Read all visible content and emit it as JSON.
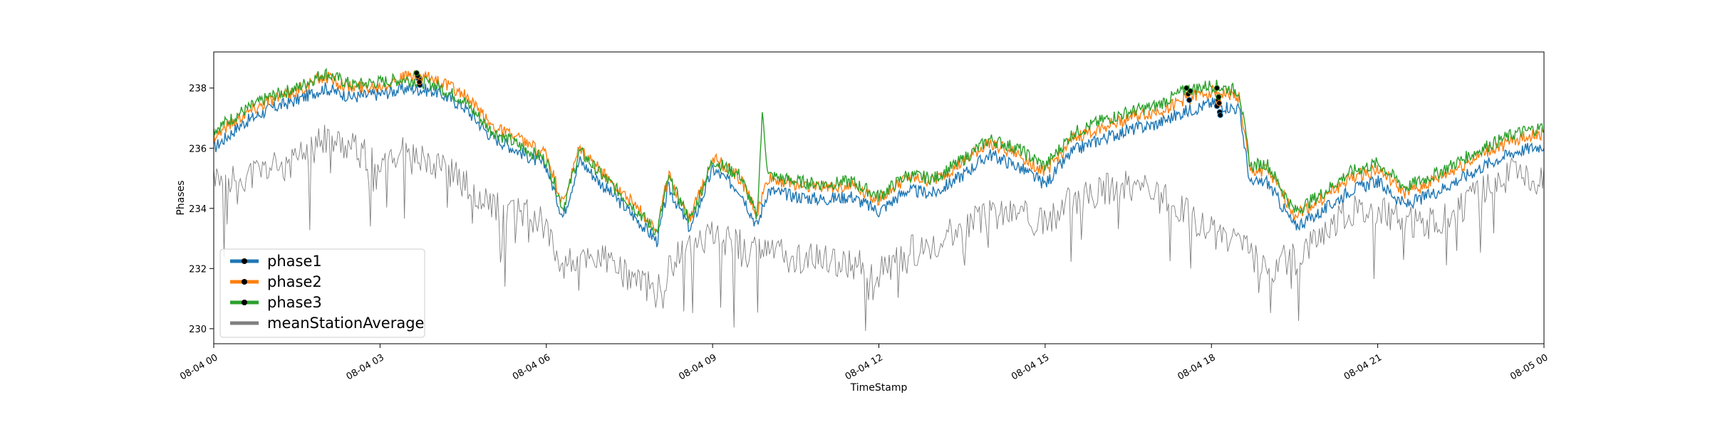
{
  "chart_data": {
    "type": "line",
    "title": "",
    "xlabel": "TimeStamp",
    "ylabel": "Phases",
    "x_ticks": [
      "08-04 00",
      "08-04 03",
      "08-04 06",
      "08-04 09",
      "08-04 12",
      "08-04 15",
      "08-04 18",
      "08-04 21",
      "08-05 00"
    ],
    "xlim_hours": [
      0,
      24
    ],
    "y_ticks": [
      "230",
      "232",
      "234",
      "236",
      "238"
    ],
    "ylim": [
      229.5,
      239.2
    ],
    "grid": false,
    "legend_position": "lower-left",
    "series": [
      {
        "name": "phase1",
        "color": "#1f77b4",
        "marker": "black dot",
        "points": [
          [
            0,
            236.0
          ],
          [
            0.5,
            236.8
          ],
          [
            1,
            237.3
          ],
          [
            1.5,
            237.6
          ],
          [
            2,
            238.0
          ],
          [
            2.5,
            237.7
          ],
          [
            3,
            237.8
          ],
          [
            3.5,
            238.0
          ],
          [
            4,
            237.9
          ],
          [
            4.5,
            237.4
          ],
          [
            5,
            236.4
          ],
          [
            5.5,
            235.9
          ],
          [
            6,
            235.4
          ],
          [
            6.3,
            233.7
          ],
          [
            6.6,
            235.6
          ],
          [
            7,
            234.8
          ],
          [
            7.5,
            233.9
          ],
          [
            8,
            232.9
          ],
          [
            8.2,
            234.7
          ],
          [
            8.6,
            233.3
          ],
          [
            9,
            235.3
          ],
          [
            9.5,
            234.6
          ],
          [
            9.8,
            233.4
          ],
          [
            10,
            234.6
          ],
          [
            10.5,
            234.4
          ],
          [
            11,
            234.3
          ],
          [
            11.5,
            234.4
          ],
          [
            12,
            233.9
          ],
          [
            12.5,
            234.6
          ],
          [
            13,
            234.5
          ],
          [
            13.5,
            235.1
          ],
          [
            14,
            235.8
          ],
          [
            14.5,
            235.4
          ],
          [
            15,
            234.8
          ],
          [
            15.5,
            235.9
          ],
          [
            16,
            236.3
          ],
          [
            16.5,
            236.6
          ],
          [
            17,
            236.8
          ],
          [
            17.5,
            237.2
          ],
          [
            18,
            237.5
          ],
          [
            18.5,
            237.3
          ],
          [
            18.7,
            234.8
          ],
          [
            19,
            234.9
          ],
          [
            19.5,
            233.4
          ],
          [
            20,
            233.9
          ],
          [
            20.5,
            234.6
          ],
          [
            21,
            234.9
          ],
          [
            21.5,
            234.1
          ],
          [
            22,
            234.5
          ],
          [
            22.5,
            235.0
          ],
          [
            23,
            235.5
          ],
          [
            23.5,
            235.9
          ],
          [
            24,
            236.1
          ]
        ],
        "markers": [
          [
            3.7,
            238.3
          ],
          [
            3.72,
            238.1
          ],
          [
            17.6,
            237.6
          ],
          [
            18.1,
            237.4
          ],
          [
            18.15,
            237.2
          ],
          [
            18.16,
            237.1
          ]
        ]
      },
      {
        "name": "phase2",
        "color": "#ff7f0e",
        "marker": "black dot",
        "points": [
          [
            0,
            236.4
          ],
          [
            0.5,
            237.1
          ],
          [
            1,
            237.6
          ],
          [
            1.5,
            237.9
          ],
          [
            2,
            238.4
          ],
          [
            2.5,
            238.0
          ],
          [
            3,
            238.1
          ],
          [
            3.5,
            238.4
          ],
          [
            4,
            238.3
          ],
          [
            4.5,
            237.8
          ],
          [
            5,
            236.8
          ],
          [
            5.5,
            236.3
          ],
          [
            6,
            235.8
          ],
          [
            6.3,
            234.1
          ],
          [
            6.6,
            236.0
          ],
          [
            7,
            235.2
          ],
          [
            7.5,
            234.3
          ],
          [
            8,
            233.3
          ],
          [
            8.2,
            235.1
          ],
          [
            8.6,
            233.7
          ],
          [
            9,
            235.7
          ],
          [
            9.5,
            235.0
          ],
          [
            9.8,
            233.8
          ],
          [
            10,
            235.0
          ],
          [
            10.5,
            234.8
          ],
          [
            11,
            234.7
          ],
          [
            11.5,
            234.8
          ],
          [
            12,
            234.3
          ],
          [
            12.5,
            235.0
          ],
          [
            13,
            234.9
          ],
          [
            13.5,
            235.5
          ],
          [
            14,
            236.2
          ],
          [
            14.5,
            235.8
          ],
          [
            15,
            235.2
          ],
          [
            15.5,
            236.3
          ],
          [
            16,
            236.7
          ],
          [
            16.5,
            237.0
          ],
          [
            17,
            237.2
          ],
          [
            17.5,
            237.6
          ],
          [
            18,
            237.9
          ],
          [
            18.5,
            237.7
          ],
          [
            18.7,
            235.2
          ],
          [
            19,
            235.3
          ],
          [
            19.5,
            233.8
          ],
          [
            20,
            234.3
          ],
          [
            20.5,
            235.0
          ],
          [
            21,
            235.3
          ],
          [
            21.5,
            234.5
          ],
          [
            22,
            234.9
          ],
          [
            22.5,
            235.4
          ],
          [
            23,
            235.9
          ],
          [
            23.5,
            236.3
          ],
          [
            24,
            236.5
          ]
        ],
        "markers": [
          [
            3.68,
            238.4
          ],
          [
            3.71,
            238.2
          ],
          [
            17.58,
            237.8
          ],
          [
            18.12,
            237.6
          ],
          [
            18.14,
            237.5
          ]
        ]
      },
      {
        "name": "phase3",
        "color": "#2ca02c",
        "marker": "black dot",
        "points": [
          [
            0,
            236.6
          ],
          [
            0.5,
            237.2
          ],
          [
            1,
            237.7
          ],
          [
            1.5,
            238.0
          ],
          [
            2,
            238.5
          ],
          [
            2.5,
            238.1
          ],
          [
            3,
            238.2
          ],
          [
            3.5,
            238.3
          ],
          [
            4,
            238.1
          ],
          [
            4.5,
            237.6
          ],
          [
            5,
            236.6
          ],
          [
            5.5,
            236.1
          ],
          [
            6,
            235.6
          ],
          [
            6.3,
            234.0
          ],
          [
            6.6,
            235.9
          ],
          [
            7,
            235.1
          ],
          [
            7.5,
            234.2
          ],
          [
            8,
            233.2
          ],
          [
            8.2,
            235.0
          ],
          [
            8.6,
            233.6
          ],
          [
            9,
            235.6
          ],
          [
            9.5,
            235.1
          ],
          [
            9.8,
            233.7
          ],
          [
            9.9,
            237.2
          ],
          [
            10,
            235.1
          ],
          [
            10.5,
            234.9
          ],
          [
            11,
            234.8
          ],
          [
            11.5,
            234.9
          ],
          [
            12,
            234.4
          ],
          [
            12.5,
            235.1
          ],
          [
            13,
            235.0
          ],
          [
            13.5,
            235.6
          ],
          [
            14,
            236.3
          ],
          [
            14.5,
            236.0
          ],
          [
            15,
            235.4
          ],
          [
            15.5,
            236.5
          ],
          [
            16,
            236.9
          ],
          [
            16.5,
            237.2
          ],
          [
            17,
            237.4
          ],
          [
            17.5,
            237.9
          ],
          [
            18,
            238.1
          ],
          [
            18.5,
            237.9
          ],
          [
            18.7,
            235.4
          ],
          [
            19,
            235.5
          ],
          [
            19.5,
            233.9
          ],
          [
            20,
            234.5
          ],
          [
            20.5,
            235.2
          ],
          [
            21,
            235.5
          ],
          [
            21.5,
            234.7
          ],
          [
            22,
            235.1
          ],
          [
            22.5,
            235.6
          ],
          [
            23,
            236.1
          ],
          [
            23.5,
            236.5
          ],
          [
            24,
            236.7
          ]
        ],
        "markers": [
          [
            3.66,
            238.5
          ],
          [
            17.55,
            238.0
          ],
          [
            17.62,
            237.9
          ],
          [
            18.1,
            238.0
          ],
          [
            18.13,
            237.7
          ]
        ]
      },
      {
        "name": "meanStationAverage",
        "color": "#808080",
        "marker": "none",
        "points": [
          [
            0,
            235.3
          ],
          [
            0.5,
            235.0
          ],
          [
            1,
            235.3
          ],
          [
            1.5,
            235.6
          ],
          [
            2,
            236.3
          ],
          [
            2.5,
            236.0
          ],
          [
            3,
            235.6
          ],
          [
            3.5,
            235.9
          ],
          [
            4,
            235.6
          ],
          [
            4.5,
            234.8
          ],
          [
            5,
            234.1
          ],
          [
            5.5,
            233.9
          ],
          [
            6,
            233.5
          ],
          [
            6.3,
            232.0
          ],
          [
            6.6,
            232.4
          ],
          [
            7,
            232.3
          ],
          [
            7.5,
            231.8
          ],
          [
            8,
            231.2
          ],
          [
            8.5,
            232.9
          ],
          [
            9,
            233.1
          ],
          [
            9.5,
            232.8
          ],
          [
            10,
            232.6
          ],
          [
            10.5,
            232.3
          ],
          [
            11,
            232.3
          ],
          [
            11.5,
            232.2
          ],
          [
            12,
            231.8
          ],
          [
            12.5,
            232.5
          ],
          [
            13,
            232.9
          ],
          [
            13.5,
            233.3
          ],
          [
            14,
            233.8
          ],
          [
            14.5,
            233.9
          ],
          [
            15,
            233.4
          ],
          [
            15.5,
            234.3
          ],
          [
            16,
            234.6
          ],
          [
            16.5,
            234.8
          ],
          [
            17,
            234.4
          ],
          [
            17.5,
            234.0
          ],
          [
            18,
            233.2
          ],
          [
            18.5,
            232.8
          ],
          [
            19,
            232.0
          ],
          [
            19.5,
            232.4
          ],
          [
            20,
            233.3
          ],
          [
            20.5,
            233.9
          ],
          [
            21,
            234.0
          ],
          [
            21.5,
            233.6
          ],
          [
            22,
            233.5
          ],
          [
            22.5,
            234.0
          ],
          [
            23,
            234.8
          ],
          [
            23.5,
            235.2
          ],
          [
            24,
            234.9
          ]
        ]
      }
    ]
  }
}
